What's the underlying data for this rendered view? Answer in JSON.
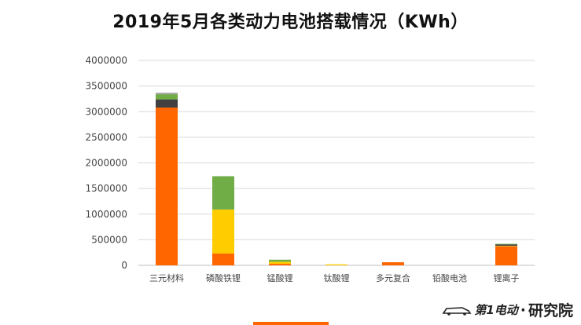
{
  "chart_data": {
    "type": "bar",
    "stacked": true,
    "title": "2019年5月各类动力电池搭载情况（KWh）",
    "categories": [
      "三元材料",
      "磷酸铁锂",
      "锰酸锂",
      "钛酸锂",
      "多元复合",
      "铅酸电池",
      "锂离子"
    ],
    "series": [
      {
        "color": "#ff6600",
        "values": [
          3080000,
          230000,
          30000,
          0,
          60000,
          0,
          370000
        ]
      },
      {
        "color": "#ffcc00",
        "values": [
          0,
          860000,
          40000,
          20000,
          0,
          0,
          10000
        ]
      },
      {
        "color": "#404040",
        "values": [
          160000,
          0,
          0,
          0,
          0,
          0,
          30000
        ]
      },
      {
        "color": "#70ad47",
        "values": [
          100000,
          650000,
          40000,
          0,
          0,
          0,
          10000
        ]
      },
      {
        "color": "#a5a5a5",
        "values": [
          30000,
          0,
          0,
          0,
          0,
          0,
          0
        ]
      }
    ],
    "yticks": [
      "0",
      "500000",
      "1000000",
      "1500000",
      "2000000",
      "2500000",
      "3000000",
      "3500000",
      "4000000"
    ],
    "ylim": [
      0,
      4000000
    ],
    "grid": true
  },
  "brand": {
    "logo_text": "第1电动",
    "separator": "·",
    "suffix": "研究院"
  }
}
